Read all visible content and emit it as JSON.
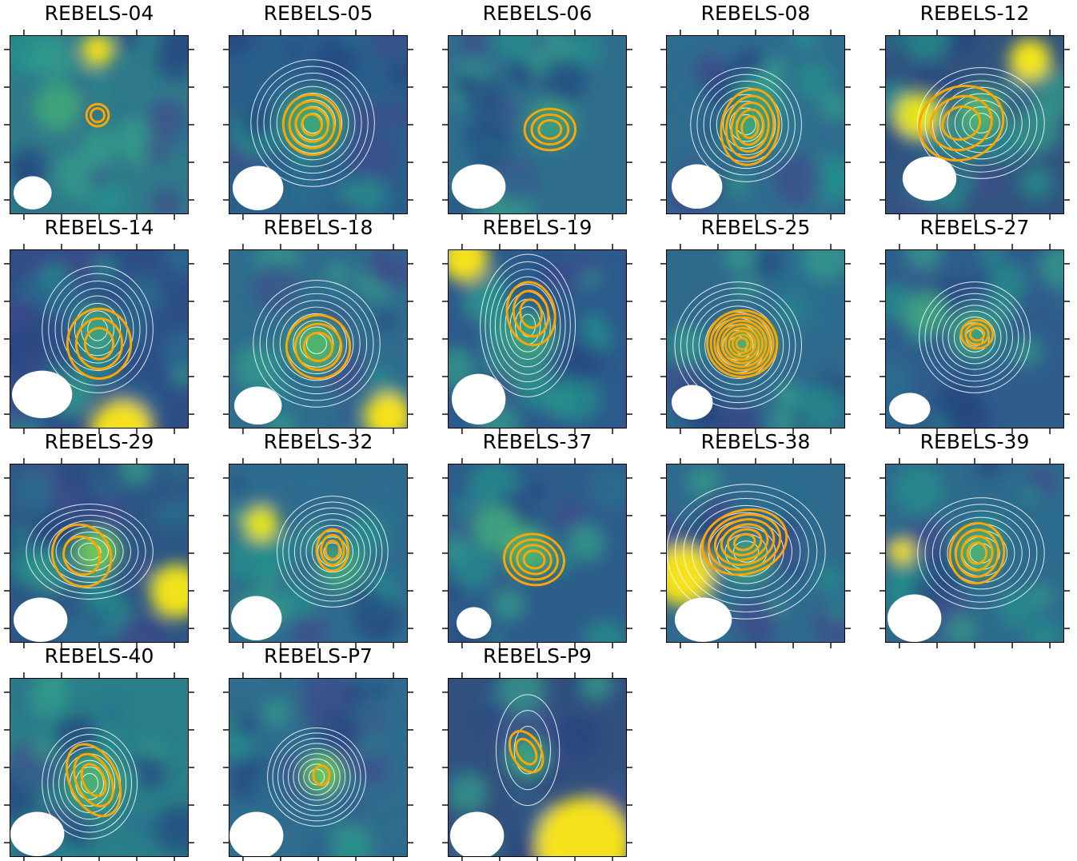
{
  "colors": {
    "tracer_a_contour": "#ffa500",
    "tracer_b_contour": "#ffffff",
    "beam": "#ffffff",
    "colormap": "viridis"
  },
  "panels": [
    {
      "id": "REBELS-04",
      "title": "REBELS-04"
    },
    {
      "id": "REBELS-05",
      "title": "REBELS-05"
    },
    {
      "id": "REBELS-06",
      "title": "REBELS-06"
    },
    {
      "id": "REBELS-08",
      "title": "REBELS-08"
    },
    {
      "id": "REBELS-12",
      "title": "REBELS-12"
    },
    {
      "id": "REBELS-14",
      "title": "REBELS-14"
    },
    {
      "id": "REBELS-18",
      "title": "REBELS-18"
    },
    {
      "id": "REBELS-19",
      "title": "REBELS-19"
    },
    {
      "id": "REBELS-25",
      "title": "REBELS-25"
    },
    {
      "id": "REBELS-27",
      "title": "REBELS-27"
    },
    {
      "id": "REBELS-29",
      "title": "REBELS-29"
    },
    {
      "id": "REBELS-32",
      "title": "REBELS-32"
    },
    {
      "id": "REBELS-37",
      "title": "REBELS-37"
    },
    {
      "id": "REBELS-38",
      "title": "REBELS-38"
    },
    {
      "id": "REBELS-39",
      "title": "REBELS-39"
    },
    {
      "id": "REBELS-40",
      "title": "REBELS-40"
    },
    {
      "id": "REBELS-P7",
      "title": "REBELS-P7"
    },
    {
      "id": "REBELS-P9",
      "title": "REBELS-P9"
    }
  ]
}
